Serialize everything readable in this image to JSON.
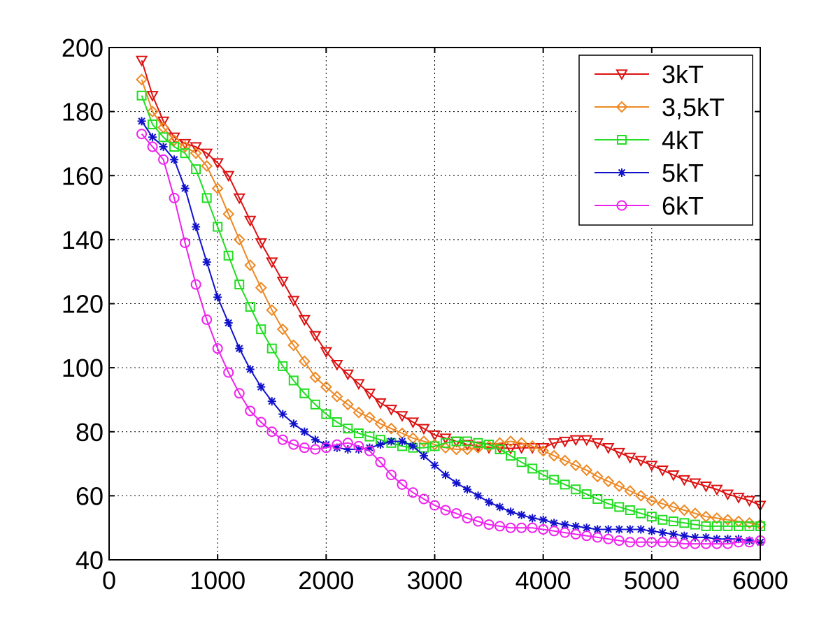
{
  "chart_data": {
    "type": "line",
    "title": "",
    "xlabel": "",
    "ylabel": "",
    "xlim": [
      0,
      6000
    ],
    "ylim": [
      40,
      200
    ],
    "xticks": [
      0,
      1000,
      2000,
      3000,
      4000,
      5000,
      6000
    ],
    "yticks": [
      40,
      60,
      80,
      100,
      120,
      140,
      160,
      180,
      200
    ],
    "grid": true,
    "legend_position": "top-right",
    "anchors": [
      300,
      400,
      500,
      600,
      700,
      800,
      900,
      1000,
      1100,
      1200,
      1300,
      1400,
      1500,
      1600,
      1800,
      2000,
      2200,
      2400,
      2600,
      2800,
      3000,
      3200,
      3500,
      3800,
      4000,
      4200,
      4400,
      4600,
      4800,
      5000,
      5200,
      5500,
      5800,
      6000
    ],
    "x": [
      300,
      400,
      500,
      600,
      700,
      800,
      900,
      1000,
      1100,
      1200,
      1300,
      1400,
      1500,
      1600,
      1700,
      1800,
      1900,
      2000,
      2100,
      2200,
      2300,
      2400,
      2500,
      2600,
      2700,
      2800,
      2900,
      3000,
      3100,
      3200,
      3300,
      3400,
      3500,
      3600,
      3700,
      3800,
      3900,
      4000,
      4100,
      4200,
      4300,
      4400,
      4500,
      4600,
      4700,
      4800,
      4900,
      5000,
      5100,
      5200,
      5300,
      5400,
      5500,
      5600,
      5700,
      5800,
      5900,
      6000
    ],
    "series": [
      {
        "name": "3kT",
        "color": "#dd1111",
        "marker": "triangle-down",
        "values": [
          196,
          185,
          177,
          172,
          170,
          169,
          167,
          164,
          160,
          153,
          146,
          139,
          133,
          127,
          121,
          115,
          110,
          105,
          101,
          98,
          95,
          92,
          89,
          87,
          85,
          83,
          81,
          79,
          78,
          77,
          76,
          75.5,
          75,
          75,
          74.8,
          75,
          75,
          75,
          76.5,
          77,
          77.5,
          77.5,
          76.5,
          75,
          73.5,
          72,
          71,
          69.5,
          68,
          66.5,
          65,
          64,
          63,
          62,
          60.5,
          59.5,
          58.5,
          57
        ]
      },
      {
        "name": "3,5kT",
        "color": "#ee8822",
        "marker": "diamond",
        "values": [
          190,
          180,
          175,
          171,
          169,
          167,
          163,
          156,
          148,
          140,
          132,
          125,
          118,
          112,
          107,
          102,
          97,
          94,
          91,
          88.5,
          86,
          84.5,
          82.5,
          81,
          79.5,
          78,
          77,
          76,
          75,
          74.5,
          74.5,
          75,
          75.5,
          76.5,
          77,
          76.5,
          75.5,
          74,
          72.5,
          71,
          69.5,
          68,
          66,
          64.5,
          63,
          61.5,
          60,
          58.5,
          57.5,
          56.5,
          55.5,
          54.5,
          53.5,
          53,
          52.5,
          52,
          51.5,
          51
        ]
      },
      {
        "name": "4kT",
        "color": "#22dd22",
        "marker": "square",
        "values": [
          185,
          176,
          172,
          169,
          167,
          162,
          153,
          144,
          135,
          126,
          119,
          112,
          106,
          100.5,
          96,
          92,
          88.5,
          85.5,
          83,
          81,
          79.5,
          78.5,
          77.5,
          76.5,
          75.5,
          75,
          75,
          75.5,
          76.5,
          77,
          77,
          76.5,
          76,
          74.5,
          72.5,
          70.5,
          68.5,
          66.5,
          65,
          63.5,
          62,
          60.5,
          59,
          57.5,
          56.5,
          55.5,
          54.5,
          53.5,
          52.5,
          52,
          51.5,
          51,
          50.5,
          50.5,
          50.5,
          50.5,
          50.5,
          50.5
        ]
      },
      {
        "name": "5kT",
        "color": "#1111cc",
        "marker": "asterisk",
        "values": [
          177,
          172,
          169,
          165,
          156,
          144,
          133,
          122,
          114,
          106,
          99.5,
          94,
          89.5,
          85.5,
          82.5,
          80,
          77.5,
          76,
          75,
          74.5,
          74.5,
          75,
          76,
          77,
          77,
          75.5,
          72.5,
          69.5,
          66.5,
          64,
          62,
          60,
          58,
          56.5,
          55,
          54,
          53,
          52.5,
          51.5,
          51,
          50.5,
          50,
          49.5,
          49.5,
          49.5,
          49.5,
          49.5,
          49,
          48.5,
          48,
          47.5,
          47,
          47,
          46.5,
          46.5,
          46.5,
          46,
          45.5
        ]
      },
      {
        "name": "6kT",
        "color": "#ee22ee",
        "marker": "circle",
        "values": [
          173,
          169,
          165,
          153,
          139,
          126,
          115,
          106,
          98.5,
          92,
          86.5,
          83,
          80,
          77.5,
          76,
          75,
          74.5,
          75,
          76,
          76.5,
          75.5,
          74,
          70.5,
          66.5,
          63.5,
          61,
          59,
          57,
          55.5,
          54.5,
          53,
          52,
          51,
          50.5,
          50,
          50,
          50,
          49.5,
          49,
          48.5,
          48,
          47.5,
          47,
          46.5,
          46,
          45.5,
          45.5,
          45.5,
          45.5,
          45.5,
          45,
          45,
          45,
          45,
          45,
          45.5,
          45.5,
          46
        ]
      }
    ]
  }
}
